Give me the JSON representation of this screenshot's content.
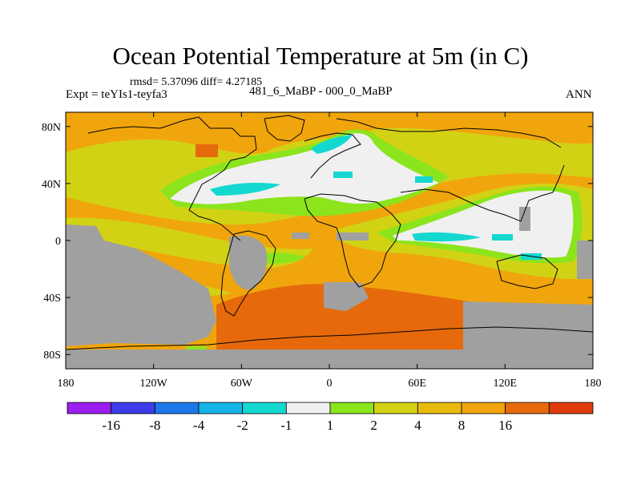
{
  "title": "Ocean Potential Temperature at 5m (in C)",
  "stats": "rmsd= 5.37096 diff= 4.27185",
  "experiment": "Expt = teYIs1-teyfa3",
  "period": "481_6_MaBP - 000_0_MaBP",
  "season": "ANN",
  "map": {
    "lon_range": [
      -180,
      180
    ],
    "lat_range": [
      -90,
      90
    ],
    "x_ticks": [
      {
        "value": -180,
        "label": "180"
      },
      {
        "value": -120,
        "label": "120W"
      },
      {
        "value": -60,
        "label": "60W"
      },
      {
        "value": 0,
        "label": "0"
      },
      {
        "value": 60,
        "label": "60E"
      },
      {
        "value": 120,
        "label": "120E"
      },
      {
        "value": 180,
        "label": "180"
      }
    ],
    "y_ticks": [
      {
        "value": 80,
        "label": "80N"
      },
      {
        "value": 40,
        "label": "40N"
      },
      {
        "value": 0,
        "label": "0"
      },
      {
        "value": -40,
        "label": "40S"
      },
      {
        "value": -80,
        "label": "80S"
      }
    ],
    "land_color": "#a0a0a0",
    "background_color": "#f0a50c"
  },
  "colorbar": {
    "colors": [
      "#9a1ff0",
      "#3c3ce8",
      "#1c78e8",
      "#14b4e8",
      "#14d8d0",
      "#f0f0f0",
      "#8ce41c",
      "#d2d214",
      "#e8ba0c",
      "#f0a50c",
      "#e66a0c",
      "#e03c0c"
    ],
    "labels": [
      "-16",
      "-8",
      "-4",
      "-2",
      "-1",
      "1",
      "2",
      "4",
      "8",
      "16"
    ]
  }
}
